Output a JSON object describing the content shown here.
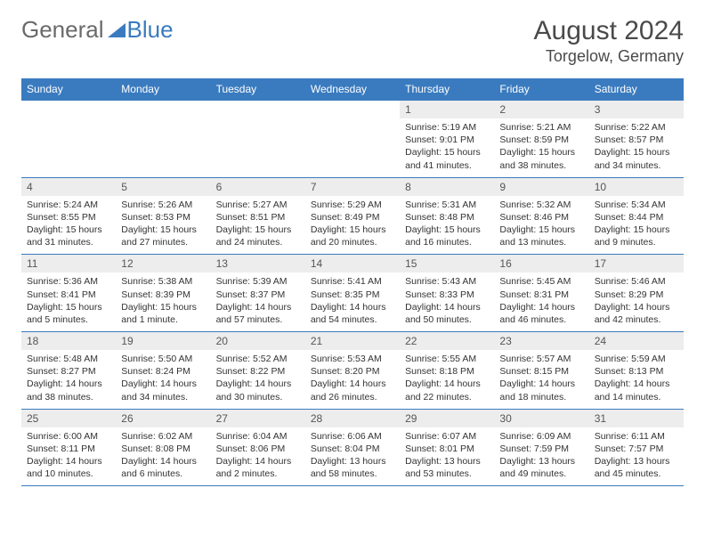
{
  "logo": {
    "part1": "General",
    "part2": "Blue"
  },
  "title": {
    "month": "August 2024",
    "location": "Torgelow, Germany"
  },
  "colors": {
    "header_bg": "#3a7bbf",
    "header_text": "#ffffff",
    "daynum_bg": "#ededed",
    "border": "#3a7bbf",
    "logo_gray": "#6a6a6a",
    "logo_blue": "#3a7bbf"
  },
  "daysOfWeek": [
    "Sunday",
    "Monday",
    "Tuesday",
    "Wednesday",
    "Thursday",
    "Friday",
    "Saturday"
  ],
  "weeks": [
    [
      {
        "num": "",
        "sunrise": "",
        "sunset": "",
        "daylight": ""
      },
      {
        "num": "",
        "sunrise": "",
        "sunset": "",
        "daylight": ""
      },
      {
        "num": "",
        "sunrise": "",
        "sunset": "",
        "daylight": ""
      },
      {
        "num": "",
        "sunrise": "",
        "sunset": "",
        "daylight": ""
      },
      {
        "num": "1",
        "sunrise": "Sunrise: 5:19 AM",
        "sunset": "Sunset: 9:01 PM",
        "daylight": "Daylight: 15 hours and 41 minutes."
      },
      {
        "num": "2",
        "sunrise": "Sunrise: 5:21 AM",
        "sunset": "Sunset: 8:59 PM",
        "daylight": "Daylight: 15 hours and 38 minutes."
      },
      {
        "num": "3",
        "sunrise": "Sunrise: 5:22 AM",
        "sunset": "Sunset: 8:57 PM",
        "daylight": "Daylight: 15 hours and 34 minutes."
      }
    ],
    [
      {
        "num": "4",
        "sunrise": "Sunrise: 5:24 AM",
        "sunset": "Sunset: 8:55 PM",
        "daylight": "Daylight: 15 hours and 31 minutes."
      },
      {
        "num": "5",
        "sunrise": "Sunrise: 5:26 AM",
        "sunset": "Sunset: 8:53 PM",
        "daylight": "Daylight: 15 hours and 27 minutes."
      },
      {
        "num": "6",
        "sunrise": "Sunrise: 5:27 AM",
        "sunset": "Sunset: 8:51 PM",
        "daylight": "Daylight: 15 hours and 24 minutes."
      },
      {
        "num": "7",
        "sunrise": "Sunrise: 5:29 AM",
        "sunset": "Sunset: 8:49 PM",
        "daylight": "Daylight: 15 hours and 20 minutes."
      },
      {
        "num": "8",
        "sunrise": "Sunrise: 5:31 AM",
        "sunset": "Sunset: 8:48 PM",
        "daylight": "Daylight: 15 hours and 16 minutes."
      },
      {
        "num": "9",
        "sunrise": "Sunrise: 5:32 AM",
        "sunset": "Sunset: 8:46 PM",
        "daylight": "Daylight: 15 hours and 13 minutes."
      },
      {
        "num": "10",
        "sunrise": "Sunrise: 5:34 AM",
        "sunset": "Sunset: 8:44 PM",
        "daylight": "Daylight: 15 hours and 9 minutes."
      }
    ],
    [
      {
        "num": "11",
        "sunrise": "Sunrise: 5:36 AM",
        "sunset": "Sunset: 8:41 PM",
        "daylight": "Daylight: 15 hours and 5 minutes."
      },
      {
        "num": "12",
        "sunrise": "Sunrise: 5:38 AM",
        "sunset": "Sunset: 8:39 PM",
        "daylight": "Daylight: 15 hours and 1 minute."
      },
      {
        "num": "13",
        "sunrise": "Sunrise: 5:39 AM",
        "sunset": "Sunset: 8:37 PM",
        "daylight": "Daylight: 14 hours and 57 minutes."
      },
      {
        "num": "14",
        "sunrise": "Sunrise: 5:41 AM",
        "sunset": "Sunset: 8:35 PM",
        "daylight": "Daylight: 14 hours and 54 minutes."
      },
      {
        "num": "15",
        "sunrise": "Sunrise: 5:43 AM",
        "sunset": "Sunset: 8:33 PM",
        "daylight": "Daylight: 14 hours and 50 minutes."
      },
      {
        "num": "16",
        "sunrise": "Sunrise: 5:45 AM",
        "sunset": "Sunset: 8:31 PM",
        "daylight": "Daylight: 14 hours and 46 minutes."
      },
      {
        "num": "17",
        "sunrise": "Sunrise: 5:46 AM",
        "sunset": "Sunset: 8:29 PM",
        "daylight": "Daylight: 14 hours and 42 minutes."
      }
    ],
    [
      {
        "num": "18",
        "sunrise": "Sunrise: 5:48 AM",
        "sunset": "Sunset: 8:27 PM",
        "daylight": "Daylight: 14 hours and 38 minutes."
      },
      {
        "num": "19",
        "sunrise": "Sunrise: 5:50 AM",
        "sunset": "Sunset: 8:24 PM",
        "daylight": "Daylight: 14 hours and 34 minutes."
      },
      {
        "num": "20",
        "sunrise": "Sunrise: 5:52 AM",
        "sunset": "Sunset: 8:22 PM",
        "daylight": "Daylight: 14 hours and 30 minutes."
      },
      {
        "num": "21",
        "sunrise": "Sunrise: 5:53 AM",
        "sunset": "Sunset: 8:20 PM",
        "daylight": "Daylight: 14 hours and 26 minutes."
      },
      {
        "num": "22",
        "sunrise": "Sunrise: 5:55 AM",
        "sunset": "Sunset: 8:18 PM",
        "daylight": "Daylight: 14 hours and 22 minutes."
      },
      {
        "num": "23",
        "sunrise": "Sunrise: 5:57 AM",
        "sunset": "Sunset: 8:15 PM",
        "daylight": "Daylight: 14 hours and 18 minutes."
      },
      {
        "num": "24",
        "sunrise": "Sunrise: 5:59 AM",
        "sunset": "Sunset: 8:13 PM",
        "daylight": "Daylight: 14 hours and 14 minutes."
      }
    ],
    [
      {
        "num": "25",
        "sunrise": "Sunrise: 6:00 AM",
        "sunset": "Sunset: 8:11 PM",
        "daylight": "Daylight: 14 hours and 10 minutes."
      },
      {
        "num": "26",
        "sunrise": "Sunrise: 6:02 AM",
        "sunset": "Sunset: 8:08 PM",
        "daylight": "Daylight: 14 hours and 6 minutes."
      },
      {
        "num": "27",
        "sunrise": "Sunrise: 6:04 AM",
        "sunset": "Sunset: 8:06 PM",
        "daylight": "Daylight: 14 hours and 2 minutes."
      },
      {
        "num": "28",
        "sunrise": "Sunrise: 6:06 AM",
        "sunset": "Sunset: 8:04 PM",
        "daylight": "Daylight: 13 hours and 58 minutes."
      },
      {
        "num": "29",
        "sunrise": "Sunrise: 6:07 AM",
        "sunset": "Sunset: 8:01 PM",
        "daylight": "Daylight: 13 hours and 53 minutes."
      },
      {
        "num": "30",
        "sunrise": "Sunrise: 6:09 AM",
        "sunset": "Sunset: 7:59 PM",
        "daylight": "Daylight: 13 hours and 49 minutes."
      },
      {
        "num": "31",
        "sunrise": "Sunrise: 6:11 AM",
        "sunset": "Sunset: 7:57 PM",
        "daylight": "Daylight: 13 hours and 45 minutes."
      }
    ]
  ]
}
